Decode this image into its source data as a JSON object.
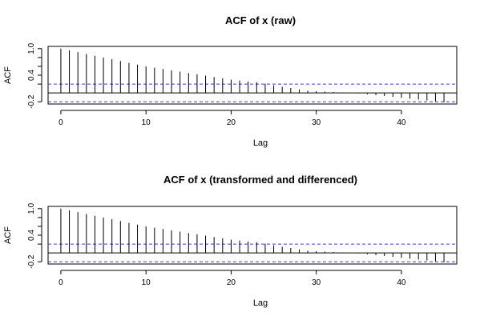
{
  "chart_data": [
    {
      "type": "bar",
      "title": "ACF of x (raw)",
      "xlabel": "Lag",
      "ylabel": "ACF",
      "xlim": [
        -1.5,
        46.5
      ],
      "ylim": [
        -0.25,
        1.05
      ],
      "xticks": [
        0,
        10,
        20,
        30,
        40
      ],
      "yticks": [
        -0.2,
        0.4,
        1.0
      ],
      "ytick_labels": [
        "-0.2",
        "0.4",
        "1.0"
      ],
      "extra_ytick_marks": [
        0.2,
        0.6,
        0.8
      ],
      "confidence_band": [
        -0.2,
        0.2
      ],
      "grid": false,
      "x": [
        0,
        1,
        2,
        3,
        4,
        5,
        6,
        7,
        8,
        9,
        10,
        11,
        12,
        13,
        14,
        15,
        16,
        17,
        18,
        19,
        20,
        21,
        22,
        23,
        24,
        25,
        26,
        27,
        28,
        29,
        30,
        31,
        32,
        33,
        34,
        35,
        36,
        37,
        38,
        39,
        40,
        41,
        42,
        43,
        44,
        45
      ],
      "values": [
        1.0,
        0.96,
        0.92,
        0.88,
        0.84,
        0.8,
        0.76,
        0.72,
        0.68,
        0.64,
        0.6,
        0.57,
        0.54,
        0.51,
        0.48,
        0.45,
        0.42,
        0.39,
        0.36,
        0.33,
        0.3,
        0.28,
        0.26,
        0.24,
        0.21,
        0.17,
        0.14,
        0.11,
        0.08,
        0.05,
        0.04,
        0.03,
        0.02,
        0.01,
        0.0,
        -0.01,
        -0.03,
        -0.05,
        -0.07,
        -0.09,
        -0.11,
        -0.13,
        -0.15,
        -0.17,
        -0.19,
        -0.21
      ]
    },
    {
      "type": "bar",
      "title": "ACF of x (transformed and differenced)",
      "xlabel": "Lag",
      "ylabel": "ACF",
      "xlim": [
        -1.5,
        46.5
      ],
      "ylim": [
        -0.25,
        1.05
      ],
      "xticks": [
        0,
        10,
        20,
        30,
        40
      ],
      "yticks": [
        -0.2,
        0.4,
        1.0
      ],
      "ytick_labels": [
        "-0.2",
        "0.4",
        "1.0"
      ],
      "extra_ytick_marks": [
        0.2,
        0.6,
        0.8
      ],
      "confidence_band": [
        -0.2,
        0.2
      ],
      "grid": false,
      "x": [
        0,
        1,
        2,
        3,
        4,
        5,
        6,
        7,
        8,
        9,
        10,
        11,
        12,
        13,
        14,
        15,
        16,
        17,
        18,
        19,
        20,
        21,
        22,
        23,
        24,
        25,
        26,
        27,
        28,
        29,
        30,
        31,
        32,
        33,
        34,
        35,
        36,
        37,
        38,
        39,
        40,
        41,
        42,
        43,
        44,
        45
      ],
      "values": [
        1.0,
        0.96,
        0.92,
        0.88,
        0.84,
        0.8,
        0.76,
        0.72,
        0.68,
        0.64,
        0.6,
        0.57,
        0.54,
        0.51,
        0.48,
        0.45,
        0.42,
        0.39,
        0.36,
        0.33,
        0.3,
        0.28,
        0.26,
        0.24,
        0.21,
        0.17,
        0.14,
        0.11,
        0.08,
        0.05,
        0.04,
        0.03,
        0.02,
        0.01,
        0.0,
        -0.01,
        -0.03,
        -0.05,
        -0.07,
        -0.09,
        -0.11,
        -0.13,
        -0.15,
        -0.17,
        -0.19,
        -0.21
      ]
    }
  ],
  "colors": {
    "bars": "#000000",
    "confidence_band": "#3b3bd0",
    "axis": "#000000"
  }
}
